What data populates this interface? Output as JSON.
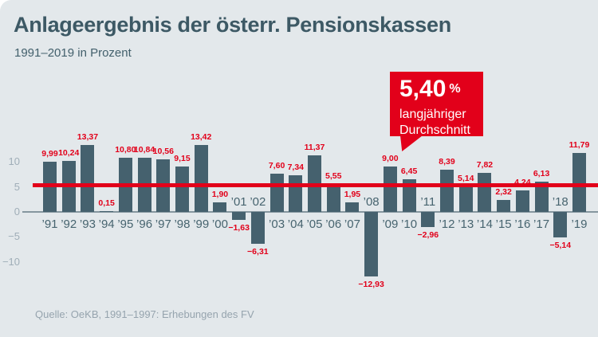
{
  "header": {
    "title": "Anlageergebnis der österr. Pensionskassen",
    "subtitle": "1991–2019 in Prozent"
  },
  "callout": {
    "value": "5,40",
    "unit": "%",
    "line1": "langjähriger",
    "line2": "Durchschnitt"
  },
  "footer": {
    "source": "Quelle: OeKB, 1991–1997: Erhebungen des FV"
  },
  "colors": {
    "background": "#e3e8eb",
    "bar": "#45616e",
    "accent_red": "#e2001a",
    "title_text": "#3d5965",
    "axis_gray": "#a0aeb8"
  },
  "chart_data": {
    "type": "bar",
    "title": "Anlageergebnis der österr. Pensionskassen",
    "subtitle": "1991–2019 in Prozent",
    "xlabel": "",
    "ylabel": "Prozent",
    "ylim": [
      -14,
      16
    ],
    "grid": false,
    "legend": "none",
    "bar_color": "#45616e",
    "categories": [
      "’91",
      "’92",
      "’93",
      "’94",
      "’95",
      "’96",
      "’97",
      "’98",
      "’99",
      "’00",
      "’01",
      "’02",
      "’03",
      "’04",
      "’05",
      "’06",
      "’07",
      "’08",
      "’09",
      "’10",
      "’11",
      "’12",
      "’13",
      "’14",
      "’15",
      "’16",
      "’17",
      "’18",
      "’19"
    ],
    "values": [
      9.99,
      10.24,
      13.37,
      0.15,
      10.8,
      10.84,
      10.56,
      9.15,
      13.42,
      1.9,
      -1.63,
      -6.31,
      7.6,
      7.34,
      11.37,
      5.55,
      1.95,
      -12.93,
      9.0,
      6.45,
      -2.96,
      8.39,
      5.14,
      7.82,
      2.32,
      4.24,
      6.13,
      -5.14,
      11.79
    ],
    "value_labels": [
      "9,99",
      "10,24",
      "13,37",
      "0,15",
      "10,80",
      "10,84",
      "10,56",
      "9,15",
      "13,42",
      "1,90",
      "−1,63",
      "−6,31",
      "7,60",
      "7,34",
      "11,37",
      "5,55",
      "1,95",
      "−12,93",
      "9,00",
      "6,45",
      "−2,96",
      "8,39",
      "5,14",
      "7,82",
      "2,32",
      "4,24",
      "6,13",
      "−5,14",
      "11,79"
    ],
    "average_line": {
      "value": 5.4,
      "label": "5,40 % langjähriger Durchschnitt",
      "color": "#e2001a"
    },
    "yticks": [
      {
        "label": "10",
        "value": 10
      },
      {
        "label": "5",
        "value": 5
      },
      {
        "label": "0",
        "value": 0
      },
      {
        "label": "−5",
        "value": -5
      },
      {
        "label": "−10",
        "value": -10
      }
    ],
    "source": "Quelle: OeKB, 1991–1997: Erhebungen des FV"
  }
}
